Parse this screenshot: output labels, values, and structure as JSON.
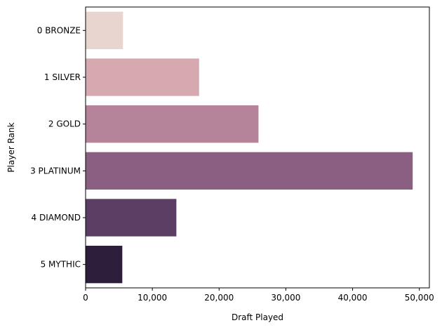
{
  "chart_data": {
    "type": "bar",
    "orientation": "horizontal",
    "categories": [
      "0 BRONZE",
      "1 SILVER",
      "2 GOLD",
      "3 PLATINUM",
      "4 DIAMOND",
      "5 MYTHIC"
    ],
    "values": [
      5600,
      17000,
      25900,
      49000,
      13600,
      5500
    ],
    "colors": [
      "#e8d5cf",
      "#d6a9b1",
      "#b5849a",
      "#8b5f82",
      "#5c3d63",
      "#2d1f3b"
    ],
    "xlabel": "Draft Played",
    "ylabel": "Player Rank",
    "xlim": [
      0,
      51500
    ],
    "xticks": [
      0,
      10000,
      20000,
      30000,
      40000,
      50000
    ],
    "xtick_labels": [
      "0",
      "10,000",
      "20,000",
      "30,000",
      "40,000",
      "50,000"
    ],
    "grid": false
  }
}
